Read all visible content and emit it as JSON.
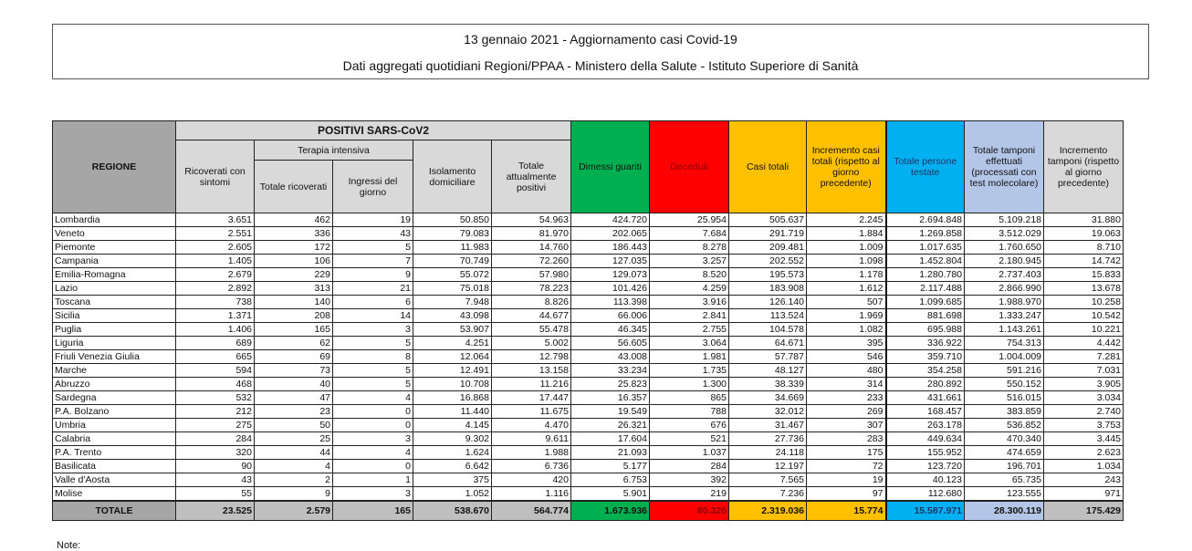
{
  "header": {
    "title": "13 gennaio 2021 - Aggiornamento casi Covid-19",
    "subtitle": "Dati aggregati quotidiani Regioni/PPAA - Ministero della Salute - Istituto Superiore di Sanità"
  },
  "table": {
    "col_regione": "REGIONE",
    "group_positivi": "POSITIVI SARS-CoV2",
    "group_terapia": "Terapia intensiva",
    "columns": [
      "Ricoverati con sintomi",
      "Totale ricoverati",
      "Ingressi del giorno",
      "Isolamento domiciliare",
      "Totale attualmente positivi",
      "Dimessi guariti",
      "Deceduti",
      "Casi totali",
      "Incremento casi totali (rispetto al giorno precedente)",
      "Totale persone testate",
      "Totale tamponi effettuati (processati con test molecolare)",
      "Incremento tamponi (rispetto al giorno precedente)"
    ],
    "header_colors": {
      "dimessi": "#00b050",
      "deceduti": "#ff0000",
      "casi": "#ffc000",
      "persone": "#00b0f0",
      "tamponi": "#b4c6e7"
    },
    "rows": [
      {
        "regione": "Lombardia",
        "values": [
          "3.651",
          "462",
          "19",
          "50.850",
          "54.963",
          "424.720",
          "25.954",
          "505.637",
          "2.245",
          "2.694.848",
          "5.109.218",
          "31.880"
        ]
      },
      {
        "regione": "Veneto",
        "values": [
          "2.551",
          "336",
          "43",
          "79.083",
          "81.970",
          "202.065",
          "7.684",
          "291.719",
          "1.884",
          "1.269.858",
          "3.512.029",
          "19.063"
        ]
      },
      {
        "regione": "Piemonte",
        "values": [
          "2.605",
          "172",
          "5",
          "11.983",
          "14.760",
          "186.443",
          "8.278",
          "209.481",
          "1.009",
          "1.017.635",
          "1.760.650",
          "8.710"
        ]
      },
      {
        "regione": "Campania",
        "values": [
          "1.405",
          "106",
          "7",
          "70.749",
          "72.260",
          "127.035",
          "3.257",
          "202.552",
          "1.098",
          "1.452.804",
          "2.180.945",
          "14.742"
        ]
      },
      {
        "regione": "Emilia-Romagna",
        "values": [
          "2.679",
          "229",
          "9",
          "55.072",
          "57.980",
          "129.073",
          "8.520",
          "195.573",
          "1.178",
          "1.280.780",
          "2.737.403",
          "15.833"
        ]
      },
      {
        "regione": "Lazio",
        "values": [
          "2.892",
          "313",
          "21",
          "75.018",
          "78.223",
          "101.426",
          "4.259",
          "183.908",
          "1.612",
          "2.117.488",
          "2.866.990",
          "13.678"
        ]
      },
      {
        "regione": "Toscana",
        "values": [
          "738",
          "140",
          "6",
          "7.948",
          "8.826",
          "113.398",
          "3.916",
          "126.140",
          "507",
          "1.099.685",
          "1.988.970",
          "10.258"
        ]
      },
      {
        "regione": "Sicilia",
        "values": [
          "1.371",
          "208",
          "14",
          "43.098",
          "44.677",
          "66.006",
          "2.841",
          "113.524",
          "1.969",
          "881.698",
          "1.333.247",
          "10.542"
        ]
      },
      {
        "regione": "Puglia",
        "values": [
          "1.406",
          "165",
          "3",
          "53.907",
          "55.478",
          "46.345",
          "2.755",
          "104.578",
          "1.082",
          "695.988",
          "1.143.261",
          "10.221"
        ]
      },
      {
        "regione": "Liguria",
        "values": [
          "689",
          "62",
          "5",
          "4.251",
          "5.002",
          "56.605",
          "3.064",
          "64.671",
          "395",
          "336.922",
          "754.313",
          "4.442"
        ]
      },
      {
        "regione": "Friuli Venezia Giulia",
        "values": [
          "665",
          "69",
          "8",
          "12.064",
          "12.798",
          "43.008",
          "1.981",
          "57.787",
          "546",
          "359.710",
          "1.004.009",
          "7.281"
        ]
      },
      {
        "regione": "Marche",
        "values": [
          "594",
          "73",
          "5",
          "12.491",
          "13.158",
          "33.234",
          "1.735",
          "48.127",
          "480",
          "354.258",
          "591.216",
          "7.031"
        ]
      },
      {
        "regione": "Abruzzo",
        "values": [
          "468",
          "40",
          "5",
          "10.708",
          "11.216",
          "25.823",
          "1.300",
          "38.339",
          "314",
          "280.892",
          "550.152",
          "3.905"
        ]
      },
      {
        "regione": "Sardegna",
        "values": [
          "532",
          "47",
          "4",
          "16.868",
          "17.447",
          "16.357",
          "865",
          "34.669",
          "233",
          "431.661",
          "516.015",
          "3.034"
        ]
      },
      {
        "regione": "P.A. Bolzano",
        "values": [
          "212",
          "23",
          "0",
          "11.440",
          "11.675",
          "19.549",
          "788",
          "32.012",
          "269",
          "168.457",
          "383.859",
          "2.740"
        ]
      },
      {
        "regione": "Umbria",
        "values": [
          "275",
          "50",
          "0",
          "4.145",
          "4.470",
          "26.321",
          "676",
          "31.467",
          "307",
          "263.178",
          "536.852",
          "3.753"
        ]
      },
      {
        "regione": "Calabria",
        "values": [
          "284",
          "25",
          "3",
          "9.302",
          "9.611",
          "17.604",
          "521",
          "27.736",
          "283",
          "449.634",
          "470.340",
          "3.445"
        ]
      },
      {
        "regione": "P.A. Trento",
        "values": [
          "320",
          "44",
          "4",
          "1.624",
          "1.988",
          "21.093",
          "1.037",
          "24.118",
          "175",
          "155.952",
          "474.659",
          "2.623"
        ]
      },
      {
        "regione": "Basilicata",
        "values": [
          "90",
          "4",
          "0",
          "6.642",
          "6.736",
          "5.177",
          "284",
          "12.197",
          "72",
          "123.720",
          "196.701",
          "1.034"
        ]
      },
      {
        "regione": "Valle d'Aosta",
        "values": [
          "43",
          "2",
          "1",
          "375",
          "420",
          "6.753",
          "392",
          "7.565",
          "19",
          "40.123",
          "65.735",
          "243"
        ]
      },
      {
        "regione": "Molise",
        "values": [
          "55",
          "9",
          "3",
          "1.052",
          "1.116",
          "5.901",
          "219",
          "7.236",
          "97",
          "112.680",
          "123.555",
          "971"
        ]
      }
    ],
    "total": {
      "regione": "TOTALE",
      "values": [
        "23.525",
        "2.579",
        "165",
        "538.670",
        "564.774",
        "1.673.936",
        "80.326",
        "2.319.036",
        "15.774",
        "15.587.971",
        "28.300.119",
        "175.429"
      ]
    }
  },
  "note": "Note:"
}
